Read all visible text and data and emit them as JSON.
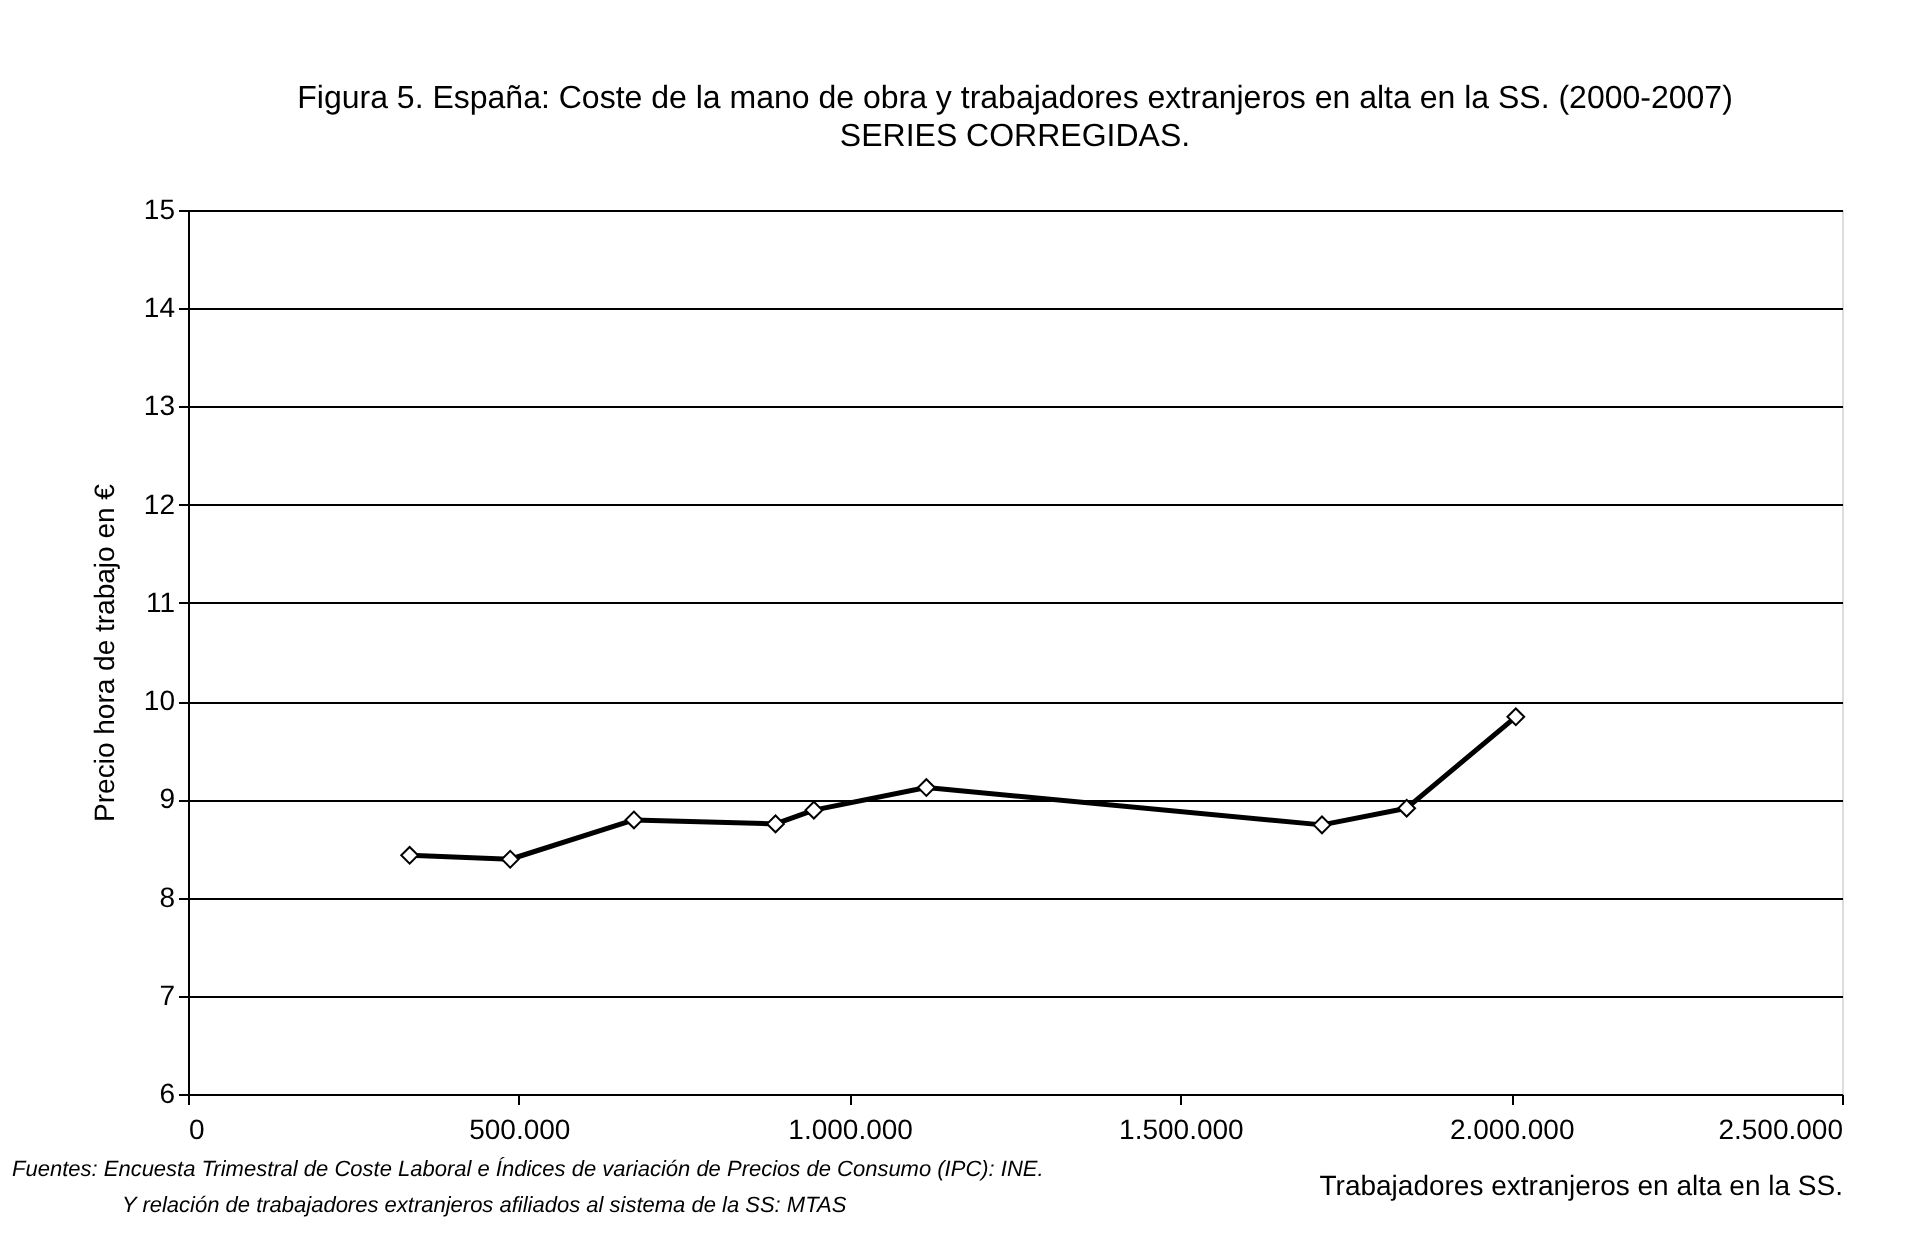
{
  "chart_data": {
    "type": "line",
    "title": "Figura 5. España: Coste de la mano de obra y trabajadores extranjeros en alta  en la SS. (2000-2007)",
    "subtitle": "SERIES CORREGIDAS.",
    "xlabel": "Trabajadores extranjeros en alta en la SS.",
    "ylabel": "Precio hora de trabajo en €",
    "annotations": [
      "Fuentes: Encuesta Trimestral de Coste Laboral e Índices de variación de Precios de Consumo (IPC): INE.",
      "Y relación de trabajadores extranjeros afiliados al sistema de la SS: MTAS"
    ],
    "x": [
      335000,
      487000,
      674000,
      888000,
      946000,
      1116000,
      1714000,
      1842000,
      2007000
    ],
    "series": [
      {
        "color": "#000000",
        "values": [
          8.43,
          8.39,
          8.79,
          8.75,
          8.89,
          9.12,
          8.74,
          8.91,
          9.84
        ]
      }
    ],
    "xlim": [
      0,
      2500000
    ],
    "xticks": [
      0,
      {
        "value": 500000,
        "label": "500.000"
      },
      {
        "value": 1000000,
        "label": "1.000.000"
      },
      {
        "value": 1500000,
        "label": "1.500.000"
      },
      {
        "value": 2000000,
        "label": "2.000.000"
      },
      {
        "value": 2500000,
        "label": "2.500.000"
      }
    ],
    "ylim": [
      6,
      15
    ],
    "yticks": [
      6,
      7,
      8,
      9,
      10,
      11,
      12,
      13,
      14,
      15
    ],
    "grid": "y",
    "marker": "diamond",
    "line_style": "solid"
  }
}
